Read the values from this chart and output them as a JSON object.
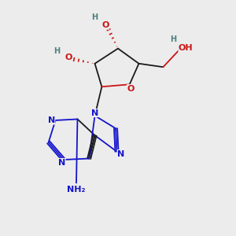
{
  "background_color": "#ececec",
  "atom_colors": {
    "C": "#1a1a1a",
    "N": "#1414cc",
    "O": "#cc1414",
    "H": "#4a8080"
  },
  "figure_size": [
    3.0,
    3.0
  ],
  "dpi": 100
}
